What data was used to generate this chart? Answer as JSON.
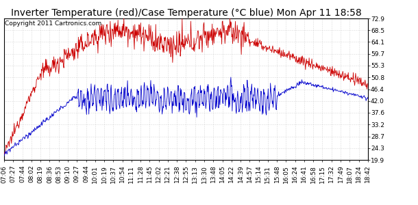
{
  "title": "Inverter Temperature (red)/Case Temperature (°C blue) Mon Apr 11 18:58",
  "copyright": "Copyright 2011 Cartronics.com",
  "yticks": [
    19.9,
    24.3,
    28.7,
    33.2,
    37.6,
    42.0,
    46.4,
    50.8,
    55.3,
    59.7,
    64.1,
    68.5,
    72.9
  ],
  "xtick_labels": [
    "07:06",
    "07:27",
    "07:44",
    "08:02",
    "08:19",
    "08:36",
    "08:53",
    "09:10",
    "09:27",
    "09:44",
    "10:01",
    "10:19",
    "10:37",
    "10:54",
    "11:11",
    "11:28",
    "11:45",
    "12:02",
    "12:21",
    "12:38",
    "12:55",
    "13:13",
    "13:30",
    "13:48",
    "14:05",
    "14:22",
    "14:39",
    "14:57",
    "15:14",
    "15:31",
    "15:48",
    "16:05",
    "16:24",
    "16:41",
    "16:58",
    "17:15",
    "17:32",
    "17:49",
    "18:07",
    "18:24",
    "18:42"
  ],
  "ymin": 19.9,
  "ymax": 72.9,
  "bg_color": "#ffffff",
  "grid_color": "#bbbbbb",
  "red_color": "#cc0000",
  "blue_color": "#0000cc",
  "title_fontsize": 10,
  "tick_fontsize": 6.5,
  "copyright_fontsize": 6.5
}
